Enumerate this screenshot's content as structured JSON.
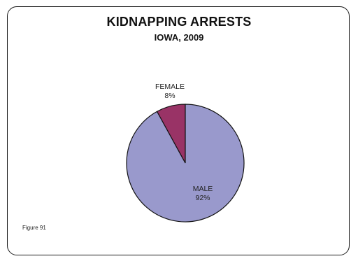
{
  "chart_data": {
    "type": "pie",
    "title": "KIDNAPPING ARRESTS",
    "subtitle": "IOWA, 2009",
    "slices": [
      {
        "label": "MALE",
        "percent_label": "92%",
        "value": 92,
        "color": "#9999CC"
      },
      {
        "label": "FEMALE",
        "percent_label": "8%",
        "value": 8,
        "color": "#993366"
      }
    ],
    "legend": "none"
  },
  "figure_note": "Figure 91"
}
